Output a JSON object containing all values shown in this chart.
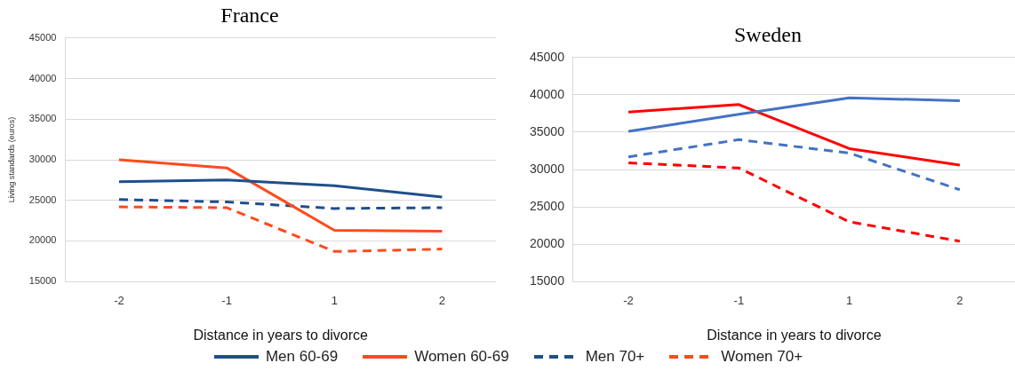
{
  "chart_data": [
    {
      "type": "line",
      "title": "France",
      "xlabel": "Distance in years to divorce",
      "ylabel": "Living standards (euros)",
      "categories": [
        "-2",
        "-1",
        "1",
        "2"
      ],
      "ylim": [
        15000,
        45000
      ],
      "yticks": [
        15000,
        20000,
        25000,
        30000,
        35000,
        40000,
        45000
      ],
      "grid": "y",
      "legend": "bottom",
      "marker": "none",
      "series": [
        {
          "name": "Men 60-69",
          "color": "#1f4e8c",
          "line_style": "solid",
          "values": [
            27300,
            27500,
            26800,
            25400
          ]
        },
        {
          "name": "Women 60-69",
          "color": "#ff4a1c",
          "line_style": "solid",
          "values": [
            30000,
            29000,
            21300,
            21200
          ]
        },
        {
          "name": "Men 70+",
          "color": "#1f4e8c",
          "line_style": "dashed",
          "values": [
            25100,
            24800,
            24000,
            24100
          ]
        },
        {
          "name": "Women 70+",
          "color": "#ff4a1c",
          "line_style": "dashed",
          "values": [
            24200,
            24100,
            18700,
            19000
          ]
        }
      ]
    },
    {
      "type": "line",
      "title": "Sweden",
      "xlabel": "Distance in years to divorce",
      "categories": [
        "-2",
        "-1",
        "1",
        "2"
      ],
      "ylim": [
        15000,
        45000
      ],
      "yticks": [
        15000,
        20000,
        25000,
        30000,
        35000,
        40000,
        45000
      ],
      "grid": "y",
      "marker": "none",
      "series": [
        {
          "color": "#4472c4",
          "line_style": "solid",
          "values": [
            35100,
            37400,
            39600,
            39200
          ]
        },
        {
          "color": "#ff0000",
          "line_style": "solid",
          "values": [
            37700,
            38700,
            32800,
            30600
          ]
        },
        {
          "color": "#4472c4",
          "line_style": "dashed",
          "values": [
            31700,
            34000,
            32200,
            27300
          ]
        },
        {
          "color": "#ff0000",
          "line_style": "dashed",
          "values": [
            30900,
            30200,
            23000,
            20400
          ]
        }
      ]
    }
  ]
}
